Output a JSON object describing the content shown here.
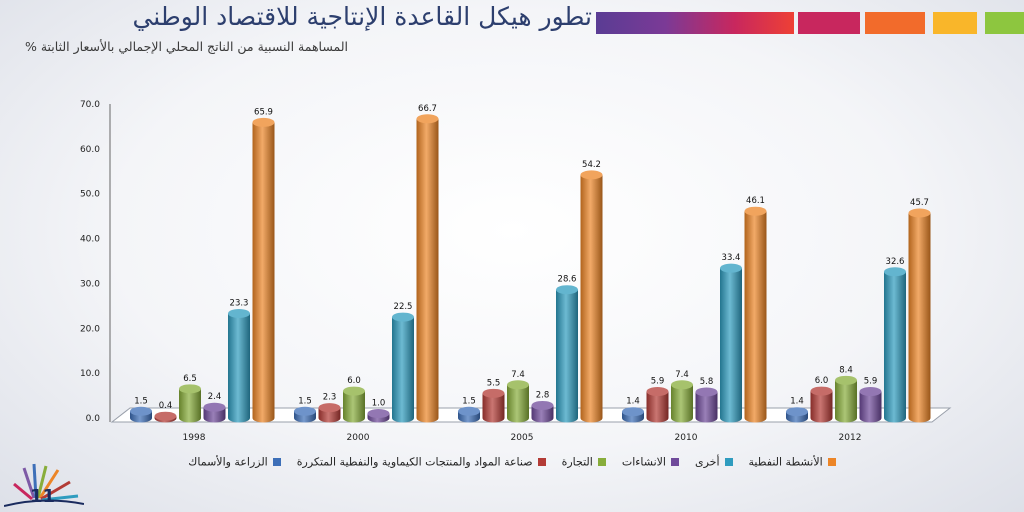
{
  "header": {
    "title": "تطور هيكل القاعدة الإنتاجية للاقتصاد الوطني",
    "subtitle": "المساهمة النسبية من الناتج المحلي الإجمالي بالأسعار الثابتة %"
  },
  "decor": {
    "bar_colors": [
      "#c8275e",
      "#f26b2b",
      "#f9b62a",
      "#8dc63f",
      "#6ccfd0"
    ]
  },
  "footer": {
    "page_number": "11"
  },
  "chart_data": {
    "type": "bar",
    "categories": [
      "1998",
      "2000",
      "2005",
      "2010",
      "2012"
    ],
    "series": [
      {
        "name": "الزراعة والأسماك",
        "color": "#3d6fb8",
        "values": [
          1.5,
          1.5,
          1.5,
          1.4,
          1.4
        ]
      },
      {
        "name": "صناعة المواد والمنتجات الكيماوية والنفطية المتكررة",
        "color": "#b33b36",
        "values": [
          0.4,
          2.3,
          5.5,
          5.9,
          6.0
        ]
      },
      {
        "name": "التجارة",
        "color": "#88ad3b",
        "values": [
          6.5,
          6.0,
          7.4,
          7.4,
          8.4
        ]
      },
      {
        "name": "الانشاءات",
        "color": "#6f4a9a",
        "values": [
          2.4,
          1.0,
          2.8,
          5.8,
          5.9
        ]
      },
      {
        "name": "أخرى",
        "color": "#2f9cbf",
        "values": [
          23.3,
          22.5,
          28.6,
          33.4,
          32.6
        ]
      },
      {
        "name": "الأنشطة النفطية",
        "color": "#ec8527",
        "values": [
          65.9,
          66.7,
          54.2,
          46.1,
          45.7
        ]
      }
    ],
    "y_tick_labels": [
      "0.0",
      "10.0",
      "20.0",
      "30.0",
      "40.0",
      "50.0",
      "60.0",
      "70.0"
    ],
    "ylim": [
      0,
      70
    ],
    "legend_position": "bottom",
    "grid": false
  }
}
